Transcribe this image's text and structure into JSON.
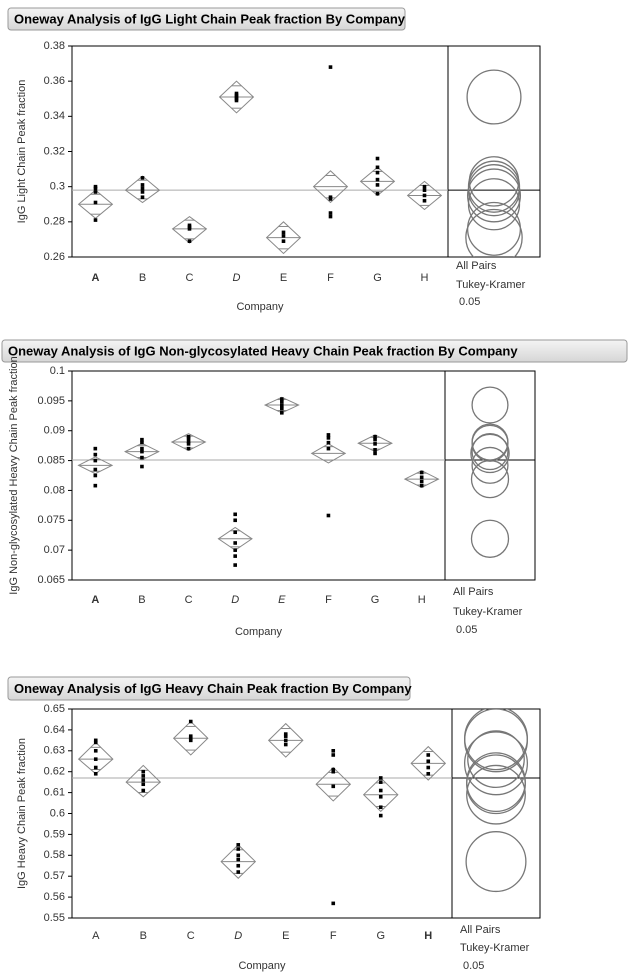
{
  "chart_data": [
    {
      "type": "oneway",
      "title": "Oneway Analysis of IgG Light Chain Peak fraction By Company",
      "y_label": "IgG Light Chain Peak fraction",
      "x_label": "Company",
      "categories": [
        "A",
        "B",
        "C",
        "D",
        "E",
        "F",
        "G",
        "H"
      ],
      "category_styles": [
        "bold",
        "normal",
        "normal",
        "italic",
        "normal",
        "normal",
        "normal",
        "normal"
      ],
      "ylim": [
        0.26,
        0.38
      ],
      "yticks": [
        0.26,
        0.28,
        0.3,
        0.32,
        0.34,
        0.36,
        0.38
      ],
      "means": [
        0.29,
        0.298,
        0.276,
        0.351,
        0.271,
        0.3,
        0.303,
        0.295
      ],
      "ci_low": [
        0.282,
        0.291,
        0.268,
        0.342,
        0.262,
        0.291,
        0.295,
        0.287
      ],
      "ci_high": [
        0.298,
        0.306,
        0.283,
        0.36,
        0.28,
        0.309,
        0.311,
        0.303
      ],
      "points": [
        [
          0.281,
          0.291,
          0.297,
          0.3,
          0.299
        ],
        [
          0.294,
          0.297,
          0.299,
          0.301,
          0.305
        ],
        [
          0.269,
          0.276,
          0.278,
          0.277
        ],
        [
          0.349,
          0.351,
          0.352,
          0.353,
          0.35
        ],
        [
          0.269,
          0.272,
          0.274
        ],
        [
          0.368,
          0.283,
          0.285,
          0.293,
          0.294
        ],
        [
          0.316,
          0.296,
          0.301,
          0.304,
          0.308,
          0.311
        ],
        [
          0.292,
          0.295,
          0.298,
          0.3
        ]
      ],
      "grand_mean": 0.298,
      "circle_radius": [
        0.0145,
        0.0145,
        0.015,
        0.0153,
        0.016,
        0.0145,
        0.014,
        0.015
      ],
      "comparison_labels": [
        "All Pairs",
        "Tukey-Kramer"
      ],
      "alpha": 0.05
    },
    {
      "type": "oneway",
      "title": "Oneway Analysis of IgG Non-glycosylated Heavy Chain Peak fraction By Company",
      "y_label": "IgG Non-glycosylated Heavy Chain Peak fraction",
      "x_label": "Company",
      "categories": [
        "A",
        "B",
        "C",
        "D",
        "E",
        "F",
        "G",
        "H"
      ],
      "category_styles": [
        "bold",
        "normal",
        "normal",
        "italic",
        "italic",
        "normal",
        "normal",
        "normal"
      ],
      "ylim": [
        0.065,
        0.1
      ],
      "yticks": [
        0.065,
        0.07,
        0.075,
        0.08,
        0.085,
        0.09,
        0.095,
        0.1
      ],
      "means": [
        0.0842,
        0.0865,
        0.0881,
        0.0719,
        0.0943,
        0.0862,
        0.0879,
        0.0819
      ],
      "ci_low": [
        0.0828,
        0.0851,
        0.0867,
        0.07,
        0.093,
        0.0846,
        0.0865,
        0.0805
      ],
      "ci_high": [
        0.0856,
        0.0879,
        0.0895,
        0.0738,
        0.0956,
        0.0878,
        0.0893,
        0.0833
      ],
      "points": [
        [
          0.0808,
          0.0825,
          0.0835,
          0.085,
          0.086,
          0.087
        ],
        [
          0.084,
          0.0855,
          0.0865,
          0.087,
          0.088,
          0.0885
        ],
        [
          0.087,
          0.0878,
          0.0882,
          0.0887,
          0.089
        ],
        [
          0.076,
          0.075,
          0.073,
          0.0712,
          0.07,
          0.069,
          0.0675
        ],
        [
          0.093,
          0.0937,
          0.0942,
          0.0948,
          0.0953
        ],
        [
          0.0758,
          0.087,
          0.088,
          0.0888,
          0.0893
        ],
        [
          0.0862,
          0.0868,
          0.0878,
          0.0885,
          0.089
        ],
        [
          0.0808,
          0.0815,
          0.0822,
          0.083
        ]
      ],
      "grand_mean": 0.0851,
      "circle_radius": [
        0.003,
        0.003,
        0.003,
        0.0031,
        0.003,
        0.0032,
        0.003,
        0.0031
      ],
      "comparison_labels": [
        "All Pairs",
        "Tukey-Kramer"
      ],
      "alpha": 0.05
    },
    {
      "type": "oneway",
      "title": "Oneway Analysis of IgG Heavy Chain Peak fraction By Company",
      "y_label": "IgG Heavy Chain Peak fraction",
      "x_label": "Company",
      "categories": [
        "A",
        "B",
        "C",
        "D",
        "E",
        "F",
        "G",
        "H"
      ],
      "category_styles": [
        "normal",
        "normal",
        "normal",
        "italic",
        "normal",
        "normal",
        "normal",
        "bold"
      ],
      "ylim": [
        0.55,
        0.65
      ],
      "yticks": [
        0.55,
        0.56,
        0.57,
        0.58,
        0.59,
        0.6,
        0.61,
        0.62,
        0.63,
        0.64,
        0.65
      ],
      "means": [
        0.626,
        0.615,
        0.636,
        0.577,
        0.635,
        0.614,
        0.609,
        0.624
      ],
      "ci_low": [
        0.619,
        0.608,
        0.628,
        0.569,
        0.627,
        0.606,
        0.601,
        0.616
      ],
      "ci_high": [
        0.634,
        0.623,
        0.644,
        0.585,
        0.643,
        0.622,
        0.617,
        0.632
      ],
      "points": [
        [
          0.619,
          0.622,
          0.626,
          0.63,
          0.634,
          0.635
        ],
        [
          0.611,
          0.614,
          0.616,
          0.618,
          0.62
        ],
        [
          0.635,
          0.636,
          0.637,
          0.644
        ],
        [
          0.572,
          0.575,
          0.578,
          0.58,
          0.583,
          0.585
        ],
        [
          0.633,
          0.635,
          0.637,
          0.638
        ],
        [
          0.557,
          0.613,
          0.62,
          0.621,
          0.628,
          0.63
        ],
        [
          0.599,
          0.603,
          0.608,
          0.611,
          0.615,
          0.617
        ],
        [
          0.619,
          0.622,
          0.625,
          0.628
        ]
      ],
      "grand_mean": 0.617,
      "circle_radius": [
        0.0135,
        0.014,
        0.015,
        0.0143,
        0.015,
        0.014,
        0.014,
        0.015
      ],
      "comparison_labels": [
        "All Pairs",
        "Tukey-Kramer"
      ],
      "alpha": 0.05
    }
  ]
}
